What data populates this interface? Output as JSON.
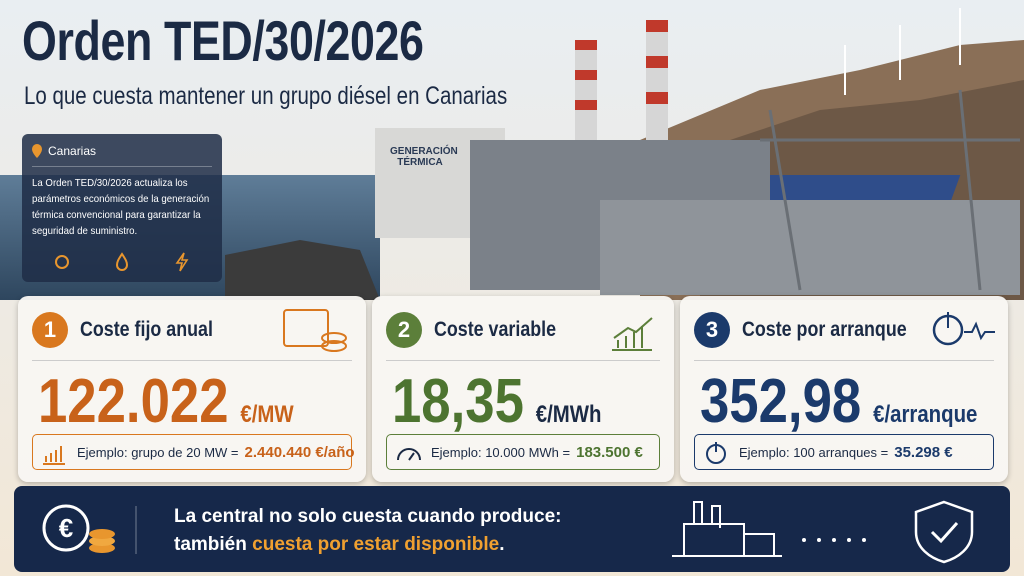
{
  "header": {
    "title": "Orden TED/30/2026",
    "subtitle": "Lo que cuesta mantener un grupo diésel en Canarias"
  },
  "info": {
    "location": "Canarias",
    "text": "La Orden TED/30/2026 actualiza los parámetros económicos de la generación térmica convencional para garantizar la seguridad de suministro."
  },
  "photo": {
    "building_label": "GENERACIÓN TÉRMICA"
  },
  "cards": [
    {
      "number": "1",
      "title": "Coste fijo anual",
      "value": "122.022",
      "unit": "€/MW",
      "example": "Ejemplo: grupo de 20 MW =",
      "result": "2.440.440 €/año"
    },
    {
      "number": "2",
      "title": "Coste variable",
      "value": "18,35",
      "unit": "€/MWh",
      "example": "Ejemplo: 10.000 MWh =",
      "result": "183.500 €"
    },
    {
      "number": "3",
      "title": "Coste por arranque",
      "value": "352,98",
      "unit": "€/arranque",
      "example": "Ejemplo: 100 arranques =",
      "result": "35.298 €"
    }
  ],
  "footer": {
    "line1": "La central no solo cuesta cuando produce:",
    "line2_start": "también",
    "line2_highlight": "cuesta por estar disponible",
    "line2_end": "."
  }
}
